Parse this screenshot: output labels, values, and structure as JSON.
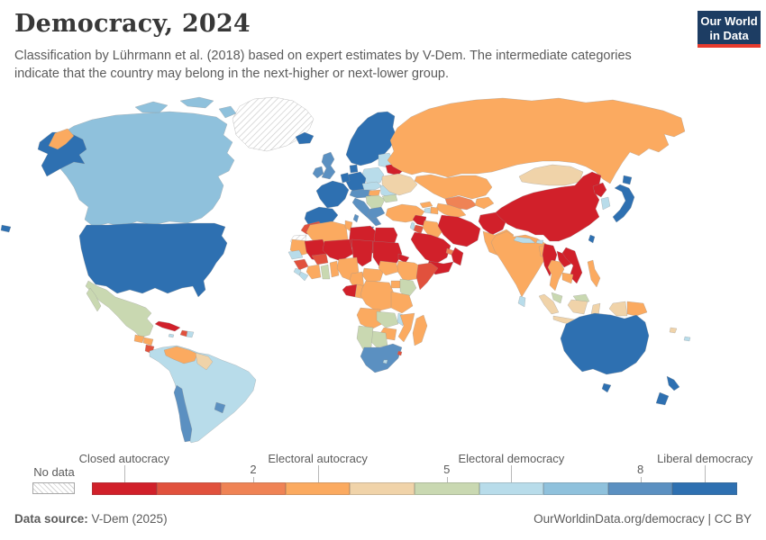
{
  "header": {
    "title": "Democracy, 2024",
    "logo": {
      "line1": "Our World",
      "line2": "in Data",
      "bg_color": "#1d3d63",
      "accent_color": "#e63b2e"
    }
  },
  "subtitle": "Classification by Lührmann et al. (2018) based on expert estimates by V-Dem. The intermediate categories indicate that the country may belong in the next-higher or next-lower group.",
  "legend": {
    "no_data_label": "No data",
    "scale_colors": [
      "#d1202a",
      "#e1513d",
      "#ef8355",
      "#fbaa60",
      "#f0d3a9",
      "#c9d8b1",
      "#b8dcea",
      "#8fc1dc",
      "#5b90c1",
      "#2e70b1"
    ],
    "categories": [
      {
        "label": "Closed autocracy",
        "value": 0
      },
      {
        "label": "Electoral autocracy",
        "value": 3
      },
      {
        "label": "Electoral democracy",
        "value": 6
      },
      {
        "label": "Liberal democracy",
        "value": 9
      }
    ],
    "number_ticks": [
      2,
      5,
      8
    ]
  },
  "footer": {
    "source_label": "Data source:",
    "source_value": " V-Dem (2025)",
    "right_text": "OurWorldinData.org/democracy | CC BY"
  },
  "map": {
    "countries": {
      "greenland": "nodata",
      "westernsahara": "nodata",
      "canada": 7,
      "usa": 9,
      "mexico": 5,
      "guatemala": 3,
      "honduras": 3,
      "nicaragua": 1,
      "costarica": 9,
      "panama": 6,
      "cuba": 0,
      "haiti": 1,
      "dominicanrep": 6,
      "jamaica": 6,
      "southamerica": 6,
      "venezuela": 3,
      "guyana": 4,
      "chile": 8,
      "uruguay": 8,
      "iceland": 9,
      "uk": 8,
      "ireland": 8,
      "scandinavia": 9,
      "denmark": 9,
      "baltics": 6,
      "belarus": 0,
      "poland": 6,
      "germany": 9,
      "benelux": 9,
      "france": 9,
      "iberia": 9,
      "alpine": 8,
      "italy": 8,
      "czechoslovakia": 6,
      "hungary": 3,
      "balkans": 5,
      "greece": 8,
      "romania": 6,
      "bulgaria": 5,
      "ukraine": 4,
      "russia": 3,
      "kazakhstan": 3,
      "uzbekistan": 2,
      "turkmenistan": 3,
      "kyrgyztajik": 3,
      "georgia": 3,
      "armenia": 6,
      "azerbaijan": 3,
      "turkey": 3,
      "syria": 0,
      "israel": 6,
      "jordan": 1,
      "iraq": 3,
      "saudiarabia": 0,
      "uae": 2,
      "oman": 0,
      "yemen": 0,
      "iran": 0,
      "afghanistan": 0,
      "pakistan": 3,
      "india": 3,
      "nepal": 6,
      "bhutan": 6,
      "bangladesh": 3,
      "srilanka": 6,
      "mongolia": 4,
      "china": 0,
      "northkorea": 0,
      "southkorea": 6,
      "japan": 9,
      "taiwan": 9,
      "myanmar": 0,
      "thailand": 3,
      "laos": 0,
      "vietnam": 0,
      "cambodia": 3,
      "malaysia": 5,
      "indonesia": 4,
      "philippines": 3,
      "papuanewguinea": 3,
      "morocco": 1,
      "algeria": 3,
      "tunisia": 3,
      "libya": 0,
      "egypt": 0,
      "mauritania": 3,
      "mali": 0,
      "niger": 0,
      "chad": 0,
      "sudan": 0,
      "eritrea": 0,
      "ethiopia": 3,
      "somalia": 1,
      "djibouti": 3,
      "senegal": 6,
      "guinea": 1,
      "sierraleone": 6,
      "liberia": 6,
      "ivorycoast": 3,
      "burkinafaso": 1,
      "ghana": 5,
      "togobenin": 3,
      "nigeria": 3,
      "cameroon": 3,
      "centralafricanrep": 3,
      "southsudan": 3,
      "gabon": 0,
      "congo": 3,
      "drcongo": 3,
      "uganda": 3,
      "kenya": 5,
      "tanzania": 3,
      "angola": 3,
      "zambia": 5,
      "malawi": 6,
      "mozambique": 3,
      "zimbabwe": 3,
      "botswana": 5,
      "namibia": 5,
      "southafrica": 8,
      "eswatini": 1,
      "lesotho": 6,
      "madagascar": 3,
      "australia": 9,
      "newzealand": 9,
      "fiji": 4,
      "vanuatu": 6,
      "hawaii": 9,
      "russiawrap": 3
    }
  }
}
